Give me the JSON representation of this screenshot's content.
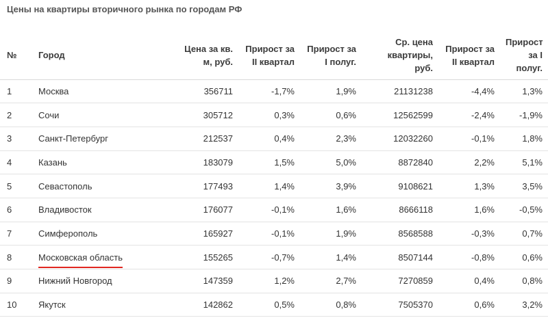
{
  "title": "Цены на квартиры вторичного рынка по городам РФ",
  "headers": {
    "num": "№",
    "city": "Город",
    "price_m2": "Цена за кв. м, руб.",
    "growth_q2_a": "Прирост за II квартал",
    "growth_h1_a": "Прирост за I полуг.",
    "avg_price": "Ср. цена квартиры, руб.",
    "growth_q2_b": "Прирост за II квартал",
    "growth_h1_b": "Прирост за I полуг."
  },
  "rows": [
    {
      "num": "1",
      "city": "Москва",
      "price_m2": "356711",
      "g1": "-1,7%",
      "g2": "1,9%",
      "avg": "21131238",
      "g3": "-4,4%",
      "g4": "1,3%"
    },
    {
      "num": "2",
      "city": "Сочи",
      "price_m2": "305712",
      "g1": "0,3%",
      "g2": "0,6%",
      "avg": "12562599",
      "g3": "-2,4%",
      "g4": "-1,9%"
    },
    {
      "num": "3",
      "city": "Санкт-Петербург",
      "price_m2": "212537",
      "g1": "0,4%",
      "g2": "2,3%",
      "avg": "12032260",
      "g3": "-0,1%",
      "g4": "1,8%"
    },
    {
      "num": "4",
      "city": "Казань",
      "price_m2": "183079",
      "g1": "1,5%",
      "g2": "5,0%",
      "avg": "8872840",
      "g3": "2,2%",
      "g4": "5,1%"
    },
    {
      "num": "5",
      "city": "Севастополь",
      "price_m2": "177493",
      "g1": "1,4%",
      "g2": "3,9%",
      "avg": "9108621",
      "g3": "1,3%",
      "g4": "3,5%"
    },
    {
      "num": "6",
      "city": "Владивосток",
      "price_m2": "176077",
      "g1": "-0,1%",
      "g2": "1,6%",
      "avg": "8666118",
      "g3": "1,6%",
      "g4": "-0,5%"
    },
    {
      "num": "7",
      "city": "Симферополь",
      "price_m2": "165927",
      "g1": "-0,1%",
      "g2": "1,9%",
      "avg": "8568588",
      "g3": "-0,3%",
      "g4": "0,7%"
    },
    {
      "num": "8",
      "city": "Московская область",
      "price_m2": "155265",
      "g1": "-0,7%",
      "g2": "1,4%",
      "avg": "8507144",
      "g3": "-0,8%",
      "g4": "0,6%"
    },
    {
      "num": "9",
      "city": "Нижний Новгород",
      "price_m2": "147359",
      "g1": "1,2%",
      "g2": "2,7%",
      "avg": "7270859",
      "g3": "0,4%",
      "g4": "0,8%"
    },
    {
      "num": "10",
      "city": "Якутск",
      "price_m2": "142862",
      "g1": "0,5%",
      "g2": "0,8%",
      "avg": "7505370",
      "g3": "0,6%",
      "g4": "3,2%"
    }
  ],
  "highlight": {
    "row": 7,
    "color": "#e0261f"
  }
}
